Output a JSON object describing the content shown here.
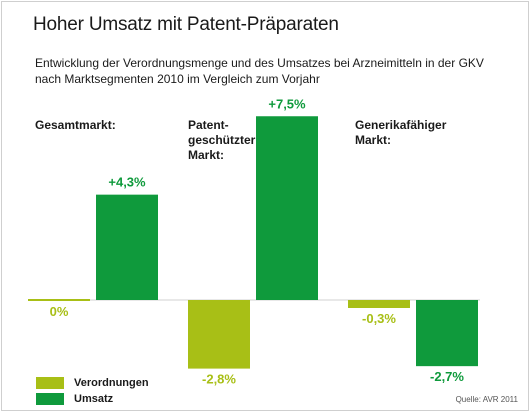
{
  "title": "Hoher Umsatz mit Patent-Präparaten",
  "subtitle": "Entwicklung der Verordnungsmenge und des Umsatzes bei Arzneimitteln in der GKV nach Marktsegmenten 2010 im Vergleich zum Vorjahr",
  "segment_labels": [
    [
      "Gesamtmarkt:"
    ],
    [
      "Patent-",
      "geschützter",
      "Markt:"
    ],
    [
      "Generikafähiger",
      "Markt:"
    ]
  ],
  "source": "Quelle: AVR 2011",
  "colors": {
    "verordnungen": "#a8bf16",
    "umsatz": "#0f9a3c"
  },
  "chart_data": {
    "type": "bar",
    "categories": [
      "Gesamtmarkt",
      "Patentgeschützter Markt",
      "Generikafähiger Markt"
    ],
    "series": [
      {
        "name": "Verordnungen",
        "values": [
          0,
          -2.8,
          -0.3
        ],
        "labels": [
          "0%",
          "-2,8%",
          "-0,3%"
        ]
      },
      {
        "name": "Umsatz",
        "values": [
          4.3,
          7.5,
          -2.7
        ],
        "labels": [
          "+4,3%",
          "+7,5%",
          "-2,7%"
        ]
      }
    ],
    "legend": "bottom-left",
    "grid": false
  }
}
